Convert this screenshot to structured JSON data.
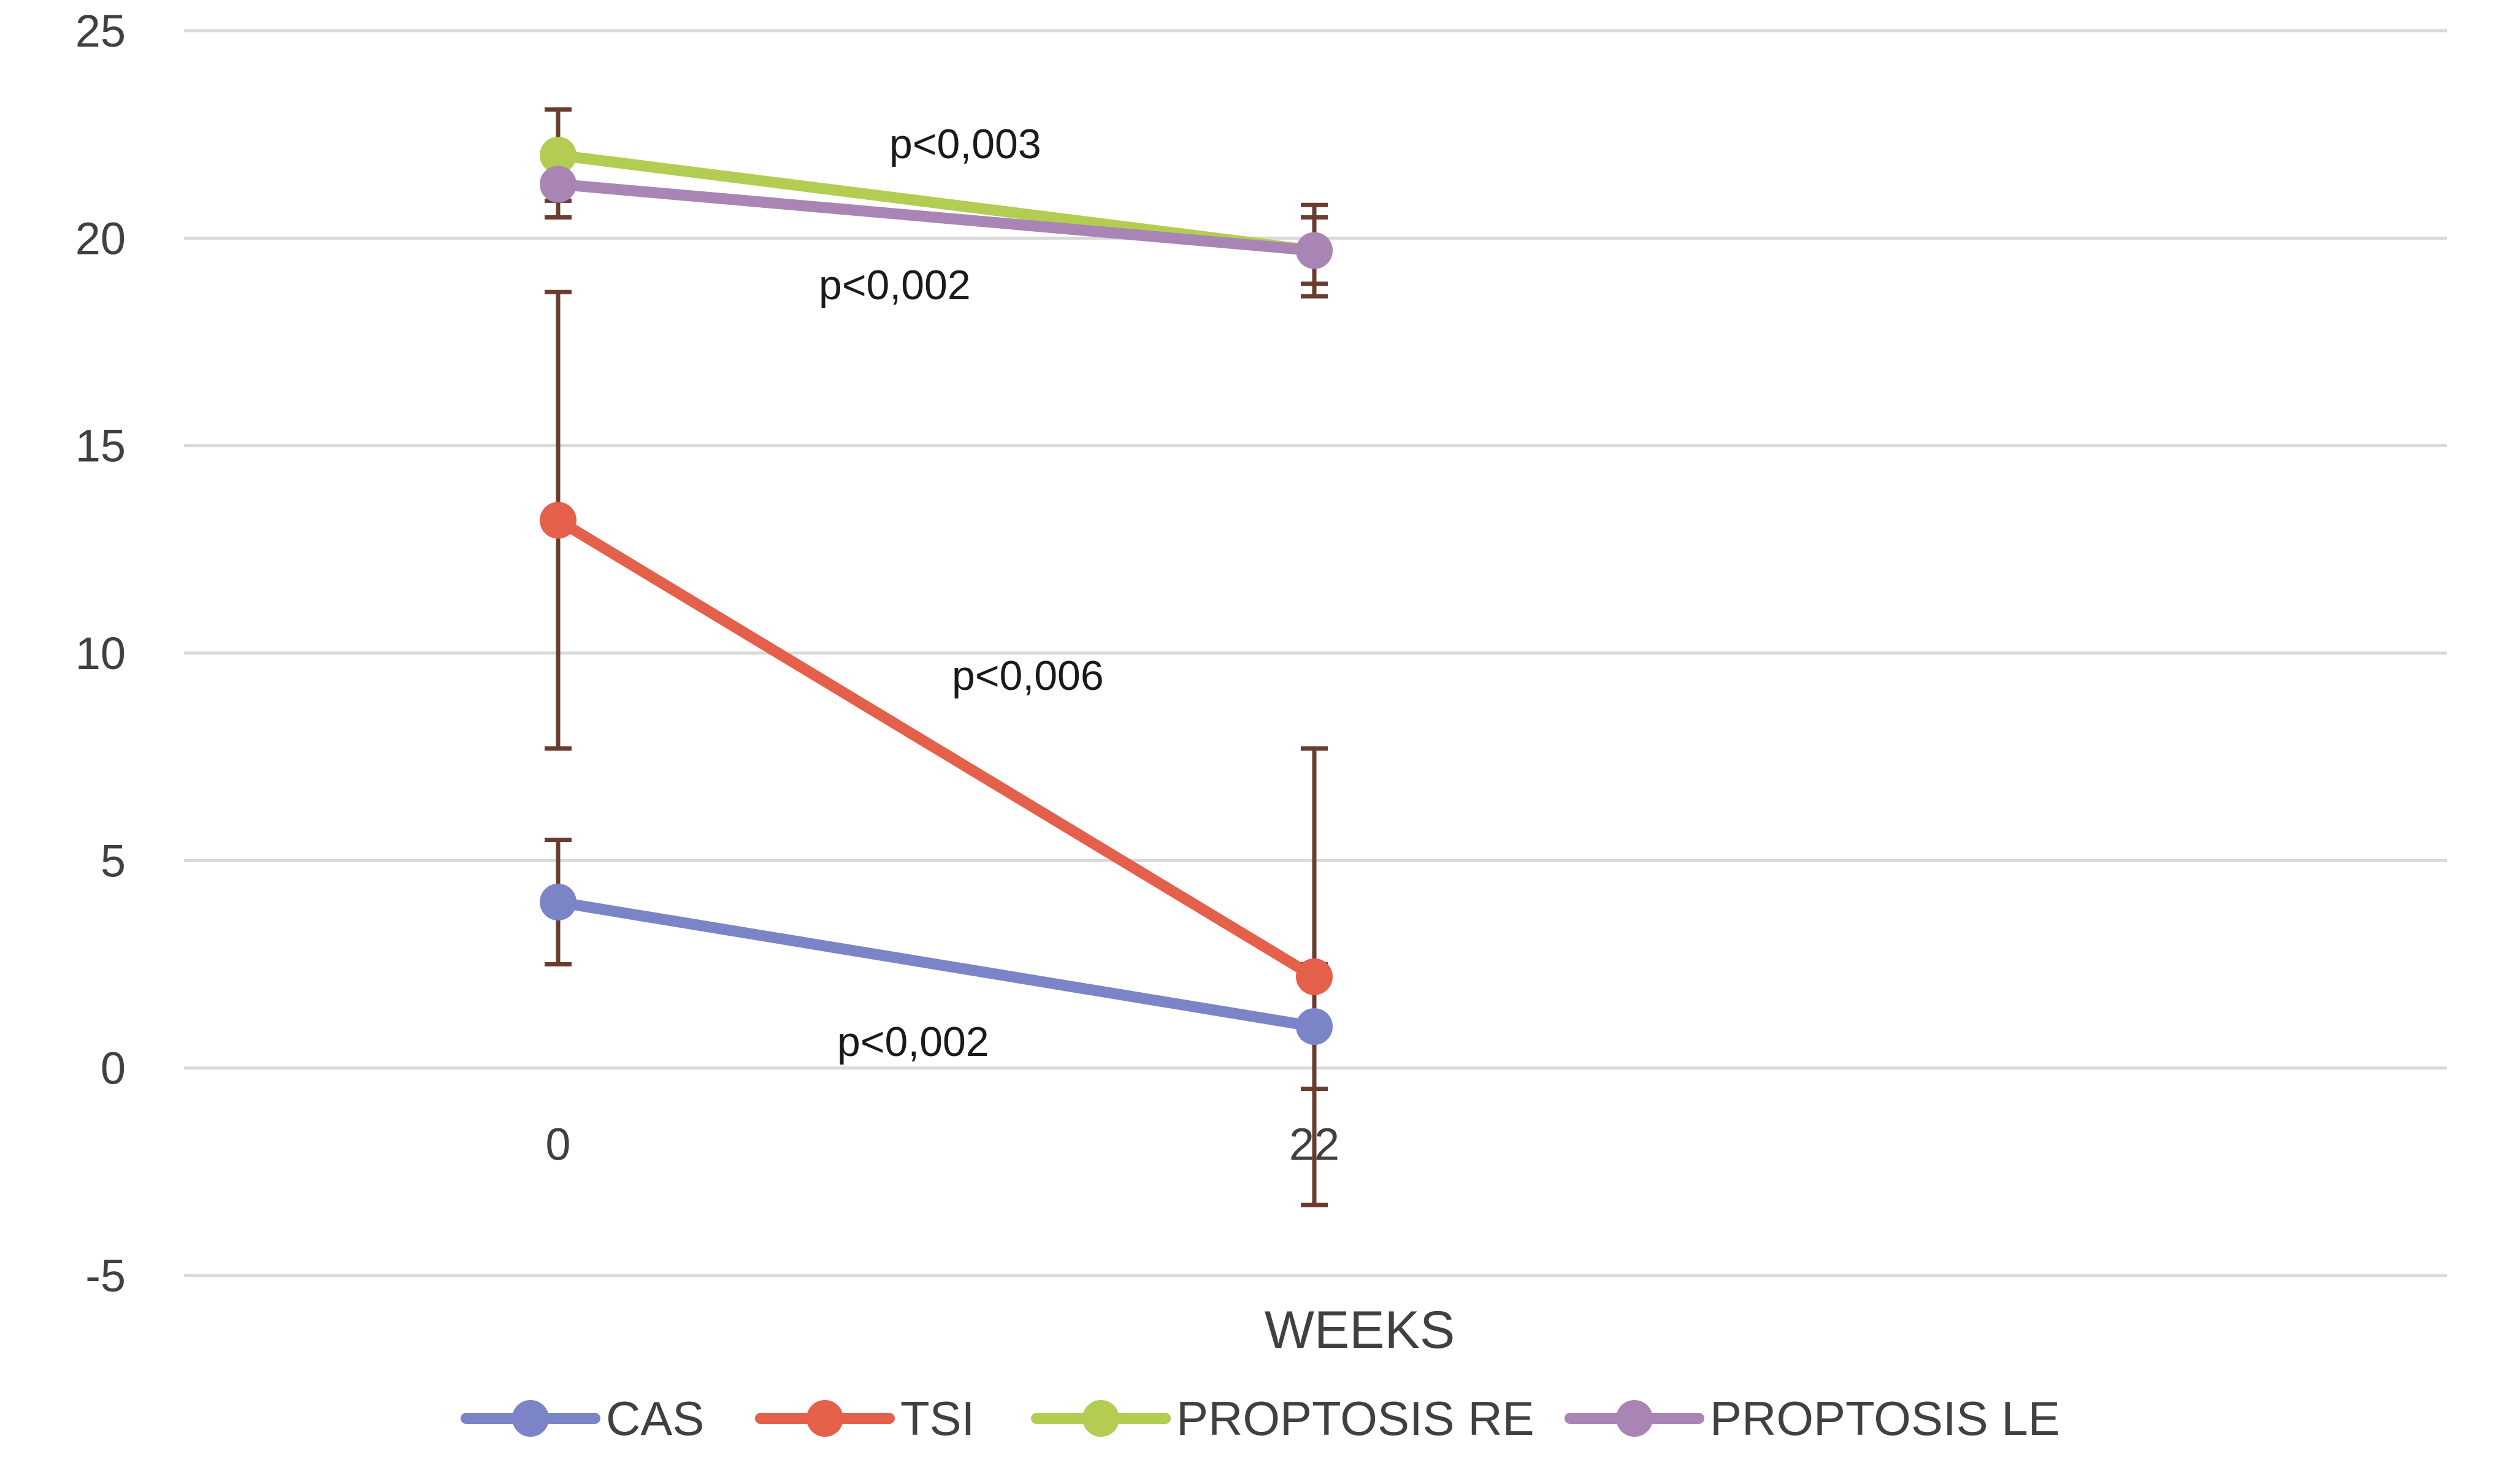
{
  "chart_data": {
    "type": "line",
    "title": "",
    "xlabel": "WEEKS",
    "ylabel": "",
    "categories": [
      "0",
      "22"
    ],
    "ylim": [
      -5,
      25
    ],
    "yticks": [
      25,
      20,
      15,
      10,
      5,
      0,
      -5
    ],
    "grid": true,
    "legend_position": "bottom",
    "series": [
      {
        "name": "CAS",
        "color": "#7b84c6",
        "values": [
          4,
          1
        ],
        "error_low": [
          2.5,
          -0.5
        ],
        "error_high": [
          5.5,
          2.5
        ]
      },
      {
        "name": "TSI",
        "color": "#e5604a",
        "values": [
          13.2,
          2.2
        ],
        "error_low": [
          7.7,
          -3.3
        ],
        "error_high": [
          18.7,
          7.7
        ]
      },
      {
        "name": "PROPTOSIS RE",
        "color": "#b3cc52",
        "values": [
          22,
          19.7
        ],
        "error_low": [
          20.9,
          18.6
        ],
        "error_high": [
          23.1,
          20.8
        ]
      },
      {
        "name": "PROPTOSIS LE",
        "color": "#a985b5",
        "values": [
          21.3,
          19.7
        ],
        "error_low": [
          20.5,
          18.9
        ],
        "error_high": [
          22.1,
          20.5
        ]
      }
    ],
    "errorbar_color": "#6b3c2e",
    "annotations": [
      {
        "text": "p<0,003",
        "series": "PROPTOSIS RE"
      },
      {
        "text": "p<0,002",
        "series": "PROPTOSIS LE"
      },
      {
        "text": "p<0,006",
        "series": "TSI"
      },
      {
        "text": "p<0,002",
        "series": "CAS"
      }
    ],
    "gridline_color": "#d9d9d9",
    "text_color": "#404040"
  }
}
